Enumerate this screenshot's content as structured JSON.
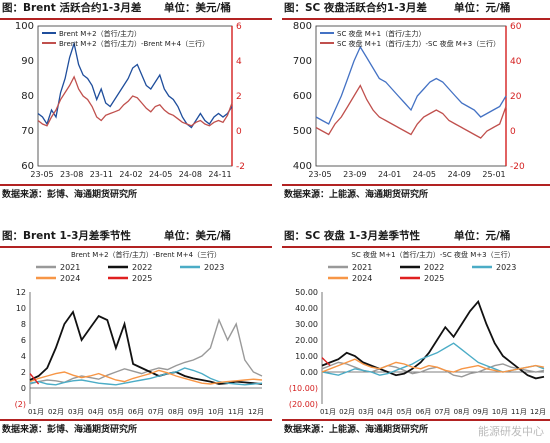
{
  "panels": [
    {
      "title": "图：Brent 活跃合约1-3月差",
      "unit": "单位：美元/桶",
      "source": "数据来源：彭博、海通期货研究所",
      "chart_data": {
        "type": "line",
        "x_ticks": [
          "23-05",
          "23-08",
          "23-11",
          "24-02",
          "24-05",
          "24-08",
          "24-11"
        ],
        "y_left": {
          "range": [
            60,
            100
          ],
          "ticks": [
            "60",
            "70",
            "80",
            "90",
            "100"
          ]
        },
        "y_right": {
          "range": [
            -2,
            6
          ],
          "ticks": [
            "-2",
            "0",
            "2",
            "4",
            "6"
          ],
          "color": "#d42020"
        },
        "series": [
          {
            "name": "Brent M+2（首行/主力）",
            "axis": "left",
            "color": "#1f4e9c",
            "values": [
              75,
              74,
              72,
              76,
              74,
              81,
              85,
              91,
              95,
              89,
              86,
              85,
              83,
              79,
              82,
              78,
              77,
              79,
              81,
              83,
              85,
              88,
              89,
              86,
              83,
              82,
              84,
              86,
              82,
              80,
              79,
              77,
              74,
              72,
              71,
              73,
              75,
              73,
              72,
              74,
              75,
              74,
              75,
              77
            ]
          },
          {
            "name": "Brent M+2（首行/主力）-Brent M+4（三行）",
            "axis": "right",
            "color": "#c0504d",
            "values": [
              0.6,
              0.4,
              0.3,
              0.8,
              1.2,
              1.8,
              2.2,
              2.6,
              3.1,
              2.4,
              2.0,
              1.8,
              1.4,
              0.8,
              0.6,
              0.9,
              1.0,
              1.1,
              1.2,
              1.5,
              1.7,
              2.0,
              1.9,
              1.6,
              1.3,
              1.1,
              1.4,
              1.5,
              1.2,
              1.0,
              0.9,
              0.7,
              0.5,
              0.4,
              0.3,
              0.5,
              0.6,
              0.4,
              0.3,
              0.5,
              0.6,
              0.5,
              0.9,
              1.6
            ]
          }
        ]
      }
    },
    {
      "title": "图：SC 夜盘活跃合约1-3月差",
      "unit": "单位：元/桶",
      "source": "数据来源：上能源、海通期货研究所",
      "chart_data": {
        "type": "line",
        "x_ticks": [
          "23-05",
          "23-09",
          "24-01",
          "24-05",
          "24-09",
          "25-01"
        ],
        "y_left": {
          "range": [
            400,
            800
          ],
          "ticks": [
            "400",
            "500",
            "600",
            "700",
            "800"
          ]
        },
        "y_right": {
          "range": [
            -20,
            60
          ],
          "ticks": [
            "-20",
            "0",
            "20",
            "40",
            "60"
          ],
          "color": "#d42020"
        },
        "series": [
          {
            "name": "SC 夜盘 M+1（首行/主力）",
            "axis": "left",
            "color": "#4472c4",
            "values": [
              540,
              530,
              520,
              560,
              600,
              650,
              700,
              740,
              710,
              680,
              650,
              640,
              620,
              600,
              580,
              560,
              600,
              620,
              640,
              650,
              640,
              620,
              600,
              580,
              570,
              560,
              540,
              550,
              560,
              570,
              600
            ]
          },
          {
            "name": "SC 夜盘 M+1（首行/主力）-SC 夜盘 M+3（三行）",
            "axis": "right",
            "color": "#c0504d",
            "values": [
              2,
              0,
              -2,
              4,
              8,
              14,
              20,
              26,
              18,
              12,
              8,
              6,
              4,
              2,
              0,
              -2,
              4,
              8,
              10,
              12,
              10,
              6,
              4,
              2,
              0,
              -2,
              -4,
              0,
              2,
              4,
              14
            ]
          }
        ]
      }
    },
    {
      "title": "图：Brent 1-3月差季节性",
      "unit": "单位：美元/桶",
      "source": "数据来源：彭博、海通期货研究所",
      "chart_data": {
        "type": "line",
        "subtitle": "Brent M+2（首行/主力）-Brent M+4（三行）",
        "x_ticks": [
          "01月",
          "02月",
          "03月",
          "04月",
          "05月",
          "06月",
          "07月",
          "08月",
          "09月",
          "10月",
          "11月",
          "12月"
        ],
        "y": {
          "range": [
            -2,
            12
          ],
          "ticks": [
            "(2)",
            "0",
            "2",
            "4",
            "6",
            "8",
            "10",
            "12"
          ]
        },
        "legend": "top",
        "series": [
          {
            "name": "2021",
            "color": "#999999",
            "values": [
              0.5,
              0.8,
              1.0,
              0.9,
              0.7,
              1.2,
              1.5,
              1.3,
              1.1,
              1.6,
              2.0,
              2.4,
              2.1,
              1.8,
              2.2,
              2.5,
              2.3,
              2.8,
              3.2,
              3.5,
              4.0,
              5.0,
              8.5,
              6.0,
              8.0,
              3.5,
              2.0,
              1.5
            ]
          },
          {
            "name": "2022",
            "color": "#111111",
            "values": [
              1.0,
              1.5,
              2.5,
              5.0,
              8.0,
              9.5,
              6.0,
              7.5,
              9.0,
              8.5,
              5.0,
              8.0,
              3.0,
              2.5,
              2.0,
              1.5,
              1.8,
              2.0,
              1.5,
              1.2,
              1.0,
              0.8,
              0.5,
              0.6,
              0.8,
              0.7,
              0.6,
              0.5
            ]
          },
          {
            "name": "2023",
            "color": "#4bacc6",
            "values": [
              0.6,
              0.8,
              0.5,
              0.4,
              0.7,
              0.9,
              1.0,
              0.8,
              0.6,
              0.5,
              0.4,
              0.6,
              0.8,
              1.0,
              1.2,
              1.5,
              1.8,
              2.0,
              2.5,
              2.2,
              1.8,
              1.2,
              0.8,
              0.6,
              0.5,
              0.4,
              0.5,
              0.6
            ]
          },
          {
            "name": "2024",
            "color": "#f79646",
            "values": [
              0.8,
              1.2,
              1.5,
              1.8,
              2.0,
              1.6,
              1.3,
              1.5,
              1.8,
              1.4,
              1.0,
              0.8,
              1.2,
              1.5,
              1.8,
              2.2,
              1.9,
              1.5,
              1.2,
              0.9,
              0.6,
              0.5,
              0.7,
              0.8,
              0.9,
              1.0,
              1.1,
              1.0
            ]
          },
          {
            "name": "2025",
            "color": "#e02020",
            "values": [
              1.8,
              0.5
            ]
          }
        ]
      }
    },
    {
      "title": "图：SC 夜盘 1-3月差季节性",
      "unit": "单位：元/桶",
      "source": "数据来源：上能源、海通期货研究所",
      "chart_data": {
        "type": "line",
        "subtitle": "SC 夜盘 M+1（首行/主力）-SC 夜盘 M+3（三行）",
        "x_ticks": [
          "01月",
          "02月",
          "03月",
          "04月",
          "05月",
          "06月",
          "07月",
          "08月",
          "09月",
          "10月",
          "11月",
          "12月"
        ],
        "y": {
          "range": [
            -20,
            50
          ],
          "ticks": [
            "(20.00)",
            "(10.00)",
            "0.00",
            "10.00",
            "20.00",
            "30.00",
            "40.00",
            "50.00"
          ]
        },
        "legend": "top",
        "series": [
          {
            "name": "2021",
            "color": "#999999",
            "values": [
              2,
              4,
              6,
              5,
              3,
              1,
              0,
              2,
              4,
              3,
              1,
              -1,
              0,
              2,
              3,
              1,
              -2,
              -3,
              -1,
              0,
              2,
              4,
              5,
              3,
              2,
              1,
              0,
              1
            ]
          },
          {
            "name": "2022",
            "color": "#111111",
            "values": [
              4,
              6,
              8,
              12,
              10,
              6,
              4,
              2,
              0,
              -2,
              -1,
              2,
              6,
              12,
              20,
              28,
              22,
              30,
              38,
              44,
              30,
              18,
              10,
              6,
              2,
              -2,
              -4,
              -3
            ]
          },
          {
            "name": "2023",
            "color": "#4bacc6",
            "values": [
              0,
              -1,
              -2,
              0,
              2,
              1,
              0,
              -2,
              -1,
              1,
              3,
              5,
              8,
              10,
              12,
              15,
              18,
              14,
              10,
              6,
              4,
              2,
              0,
              1,
              2,
              3,
              4,
              2
            ]
          },
          {
            "name": "2024",
            "color": "#f79646",
            "values": [
              0,
              2,
              4,
              6,
              8,
              5,
              3,
              2,
              4,
              6,
              5,
              3,
              2,
              4,
              3,
              1,
              0,
              2,
              3,
              4,
              2,
              1,
              0,
              1,
              2,
              3,
              4,
              3
            ]
          },
          {
            "name": "2025",
            "color": "#e02020",
            "values": [
              9,
              4
            ]
          }
        ]
      }
    }
  ],
  "watermark": "能源研发中心"
}
